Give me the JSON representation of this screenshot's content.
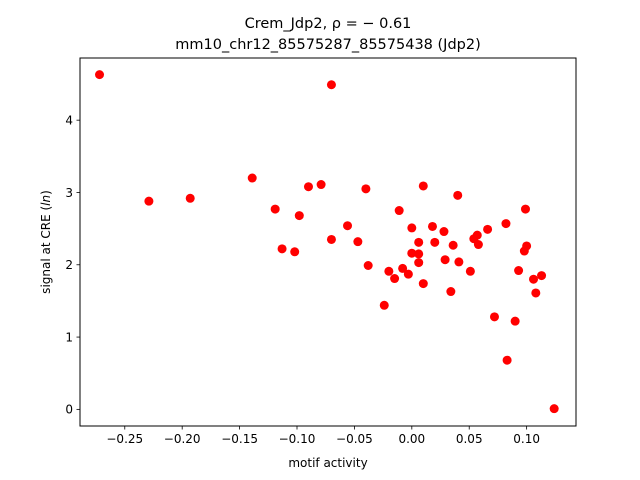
{
  "chart_data": {
    "type": "scatter",
    "title_line1": "Crem_Jdp2, ρ = − 0.61",
    "title_line2": "mm10_chr12_85575287_85575438 (Jdp2)",
    "xlabel": "motif activity",
    "ylabel_prefix": "signal at CRE (",
    "ylabel_unit": "ln",
    "ylabel_suffix": ")",
    "xlim": [
      -0.289,
      0.143
    ],
    "ylim": [
      -0.23,
      4.86
    ],
    "xticks": [
      -0.25,
      -0.2,
      -0.15,
      -0.1,
      -0.05,
      0.0,
      0.05,
      0.1
    ],
    "xtick_labels": [
      "−0.25",
      "−0.20",
      "−0.15",
      "−0.10",
      "−0.05",
      "0.00",
      "0.05",
      "0.10"
    ],
    "yticks": [
      0,
      1,
      2,
      3,
      4
    ],
    "ytick_labels": [
      "0",
      "1",
      "2",
      "3",
      "4"
    ],
    "marker_color": "#ff0000",
    "grid": false,
    "legend": false,
    "points": [
      [
        -0.272,
        4.63
      ],
      [
        -0.07,
        4.49
      ],
      [
        -0.229,
        2.88
      ],
      [
        -0.193,
        2.92
      ],
      [
        -0.139,
        3.2
      ],
      [
        -0.09,
        3.08
      ],
      [
        -0.079,
        3.11
      ],
      [
        -0.04,
        3.05
      ],
      [
        0.01,
        3.09
      ],
      [
        0.04,
        2.96
      ],
      [
        -0.119,
        2.77
      ],
      [
        -0.098,
        2.68
      ],
      [
        -0.113,
        2.22
      ],
      [
        -0.102,
        2.18
      ],
      [
        -0.07,
        2.35
      ],
      [
        -0.056,
        2.54
      ],
      [
        -0.047,
        2.32
      ],
      [
        -0.038,
        1.99
      ],
      [
        -0.011,
        2.75
      ],
      [
        0.0,
        2.51
      ],
      [
        0.006,
        2.31
      ],
      [
        0.018,
        2.53
      ],
      [
        0.02,
        2.31
      ],
      [
        0.028,
        2.46
      ],
      [
        0.036,
        2.27
      ],
      [
        0.054,
        2.36
      ],
      [
        0.057,
        2.41
      ],
      [
        0.058,
        2.28
      ],
      [
        0.066,
        2.49
      ],
      [
        0.082,
        2.57
      ],
      [
        0.099,
        2.77
      ],
      [
        0.1,
        2.26
      ],
      [
        0.098,
        2.19
      ],
      [
        -0.02,
        1.91
      ],
      [
        -0.015,
        1.81
      ],
      [
        -0.008,
        1.95
      ],
      [
        -0.003,
        1.87
      ],
      [
        0.0,
        2.16
      ],
      [
        0.006,
        2.15
      ],
      [
        0.006,
        2.03
      ],
      [
        0.01,
        1.74
      ],
      [
        0.029,
        2.07
      ],
      [
        0.041,
        2.04
      ],
      [
        0.051,
        1.91
      ],
      [
        0.034,
        1.63
      ],
      [
        0.093,
        1.92
      ],
      [
        0.106,
        1.8
      ],
      [
        0.113,
        1.85
      ],
      [
        0.108,
        1.61
      ],
      [
        -0.024,
        1.44
      ],
      [
        0.072,
        1.28
      ],
      [
        0.09,
        1.22
      ],
      [
        0.083,
        0.68
      ],
      [
        0.124,
        0.01
      ]
    ]
  }
}
